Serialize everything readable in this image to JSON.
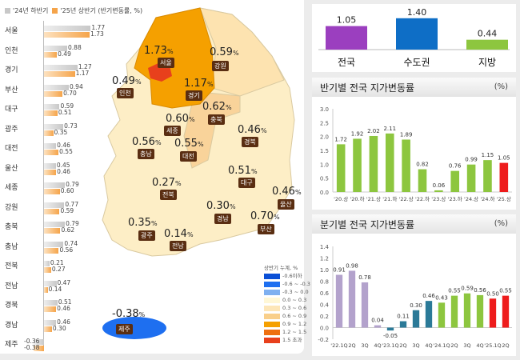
{
  "legend": {
    "prev": "'24년 하반기",
    "curr": "'25년 상반기 (반기변동률, %)",
    "prev_color": "#c8c8c8",
    "curr_color": "#f5a44a"
  },
  "regions": [
    {
      "name": "서울",
      "prev": 1.77,
      "curr": 1.73
    },
    {
      "name": "인천",
      "prev": 0.88,
      "curr": 0.49
    },
    {
      "name": "경기",
      "prev": 1.27,
      "curr": 1.17
    },
    {
      "name": "부산",
      "prev": 0.94,
      "curr": 0.7
    },
    {
      "name": "대구",
      "prev": 0.59,
      "curr": 0.51
    },
    {
      "name": "광주",
      "prev": 0.73,
      "curr": 0.35
    },
    {
      "name": "대전",
      "prev": 0.46,
      "curr": 0.55
    },
    {
      "name": "울산",
      "prev": 0.45,
      "curr": 0.46
    },
    {
      "name": "세종",
      "prev": 0.79,
      "curr": 0.6
    },
    {
      "name": "강원",
      "prev": 0.77,
      "curr": 0.59
    },
    {
      "name": "충북",
      "prev": 0.79,
      "curr": 0.62
    },
    {
      "name": "충남",
      "prev": 0.74,
      "curr": 0.56
    },
    {
      "name": "전북",
      "prev": 0.21,
      "curr": 0.27
    },
    {
      "name": "전남",
      "prev": 0.47,
      "curr": 0.14
    },
    {
      "name": "경북",
      "prev": 0.51,
      "curr": 0.46
    },
    {
      "name": "경남",
      "prev": 0.46,
      "curr": 0.3
    },
    {
      "name": "제주",
      "prev": -0.36,
      "curr": -0.38
    }
  ],
  "map": {
    "labels": [
      {
        "name": "서울",
        "value": "1.73"
      },
      {
        "name": "경기",
        "value": "1.17"
      },
      {
        "name": "강원",
        "value": "0.59"
      },
      {
        "name": "인천",
        "value": "0.49"
      },
      {
        "name": "충북",
        "value": "0.62"
      },
      {
        "name": "세종",
        "value": "0.60"
      },
      {
        "name": "충남",
        "value": "0.56"
      },
      {
        "name": "대전",
        "value": "0.55"
      },
      {
        "name": "경북",
        "value": "0.46"
      },
      {
        "name": "대구",
        "value": "0.51"
      },
      {
        "name": "울산",
        "value": "0.46"
      },
      {
        "name": "전북",
        "value": "0.27"
      },
      {
        "name": "경남",
        "value": "0.30"
      },
      {
        "name": "부산",
        "value": "0.70"
      },
      {
        "name": "광주",
        "value": "0.35"
      },
      {
        "name": "전남",
        "value": "0.14"
      },
      {
        "name": "제주",
        "value": "-0.38"
      }
    ],
    "unit": "%",
    "legend_title": "상반기 누계, %",
    "legend": [
      {
        "label": "-0.6이하",
        "color": "#0a4fd6"
      },
      {
        "label": "-0.6 ~ -0.3",
        "color": "#1e6ff0"
      },
      {
        "label": "-0.3 ~ 0.0",
        "color": "#7fb0f0"
      },
      {
        "label": "0.0 ~ 0.3",
        "color": "#fff7d6"
      },
      {
        "label": "0.3 ~ 0.6",
        "color": "#fde6b8"
      },
      {
        "label": "0.6 ~ 0.9",
        "color": "#f9cf8a"
      },
      {
        "label": "0.9 ~ 1.2",
        "color": "#f5a000"
      },
      {
        "label": "1.2 ~ 1.5",
        "color": "#ee6f10"
      },
      {
        "label": "1.5 초과",
        "color": "#e8401c"
      }
    ]
  },
  "chart_data": [
    {
      "type": "bar",
      "title": "",
      "categories": [
        "전국",
        "수도권",
        "지방"
      ],
      "values": [
        1.05,
        1.4,
        0.44
      ],
      "colors": [
        "#9b3fbf",
        "#0e6ec6",
        "#8dc63f"
      ]
    },
    {
      "type": "bar",
      "title": "반기별 전국 지가변동률",
      "unit": "(%)",
      "categories": [
        "'20.상",
        "'20.하",
        "'21.상",
        "'21.하",
        "'22.상",
        "'22.하",
        "'23.상",
        "'23.하",
        "'24.상",
        "'24.하",
        "'25.상"
      ],
      "values": [
        1.72,
        1.92,
        2.02,
        2.11,
        1.89,
        0.82,
        0.06,
        0.76,
        0.99,
        1.15,
        1.05
      ],
      "colors": [
        "#8dc63f",
        "#8dc63f",
        "#8dc63f",
        "#8dc63f",
        "#8dc63f",
        "#8dc63f",
        "#8dc63f",
        "#8dc63f",
        "#8dc63f",
        "#8dc63f",
        "#ee1c1c"
      ],
      "ylim": [
        0,
        3.0
      ],
      "yticks": [
        "0.0",
        "0.5",
        "1.0",
        "1.5",
        "2.0",
        "2.5",
        "3.0"
      ]
    },
    {
      "type": "bar",
      "title": "분기별 전국 지가변동률",
      "unit": "(%)",
      "categories": [
        "'22.1Q",
        "2Q",
        "3Q",
        "4Q",
        "'23.1Q",
        "2Q",
        "3Q",
        "4Q",
        "'24.1Q",
        "2Q",
        "3Q",
        "4Q",
        "'25.1Q",
        "2Q"
      ],
      "values": [
        0.91,
        0.98,
        0.78,
        0.04,
        -0.05,
        0.11,
        0.3,
        0.46,
        0.43,
        0.55,
        0.59,
        0.56,
        0.5,
        0.55
      ],
      "colors": [
        "#b3a2cc",
        "#b3a2cc",
        "#b3a2cc",
        "#b3a2cc",
        "#2b7a98",
        "#2b7a98",
        "#2b7a98",
        "#2b7a98",
        "#8dc63f",
        "#8dc63f",
        "#8dc63f",
        "#8dc63f",
        "#ee1c1c",
        "#ee1c1c"
      ],
      "ylim": [
        -0.2,
        1.4
      ],
      "yticks": [
        "-0.2",
        "0.0",
        "0.2",
        "0.4",
        "0.6",
        "0.8",
        "1.0",
        "1.2",
        "1.4"
      ]
    }
  ]
}
